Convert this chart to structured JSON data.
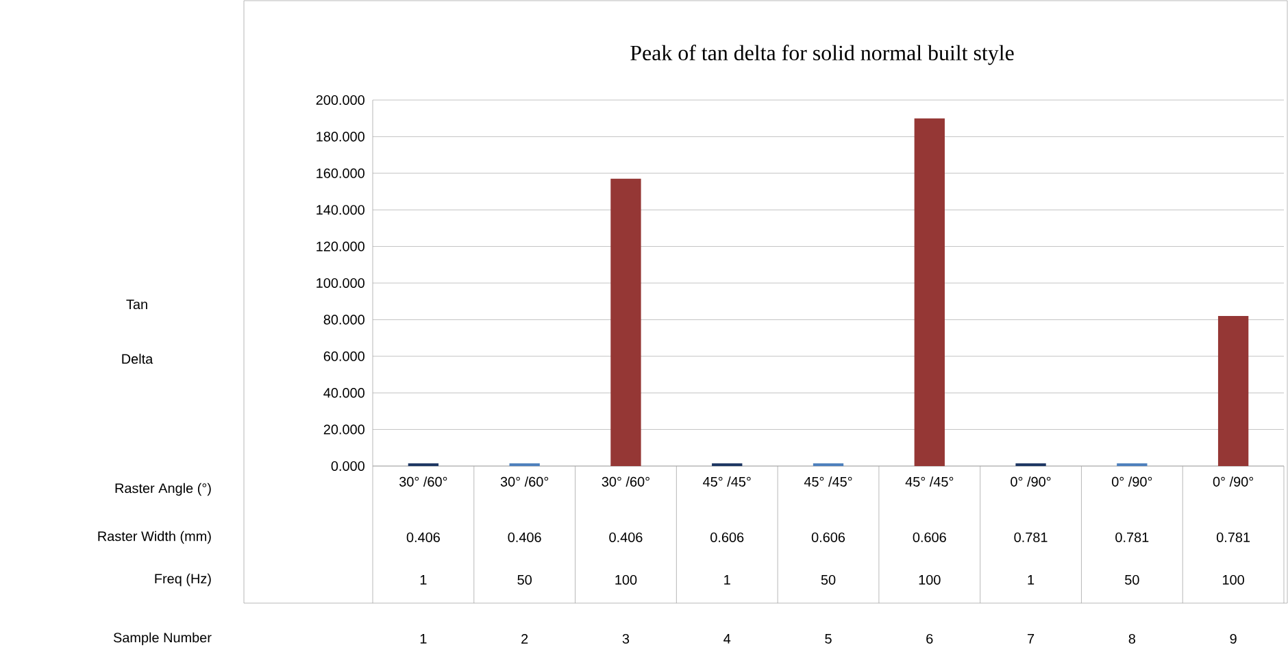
{
  "chart_data": {
    "type": "bar",
    "title": "Peak of tan delta for solid normal built style",
    "ylabel": "Tan Delta",
    "categories": [
      "30° /60°",
      "30° /60°",
      "30° /60°",
      "45° /45°",
      "45° /45°",
      "45° /45°",
      "0° /90°",
      "0° /90°",
      "0° /90°"
    ],
    "values": [
      1.5,
      1.5,
      157,
      1.5,
      1.5,
      190,
      1.5,
      1.5,
      82
    ],
    "colors": [
      "#1f3864",
      "#4f81bd",
      "#953735",
      "#1f3864",
      "#4f81bd",
      "#953735",
      "#1f3864",
      "#4f81bd",
      "#953735"
    ],
    "ylim": [
      0,
      200
    ],
    "yticks": [
      {
        "value": 0,
        "label": "0.000"
      },
      {
        "value": 20,
        "label": "20.000"
      },
      {
        "value": 40,
        "label": "40.000"
      },
      {
        "value": 60,
        "label": "60.000"
      },
      {
        "value": 80,
        "label": "80.000"
      },
      {
        "value": 100,
        "label": "100.000"
      },
      {
        "value": 120,
        "label": "120.000"
      },
      {
        "value": 140,
        "label": "140.000"
      },
      {
        "value": 160,
        "label": "160.000"
      },
      {
        "value": 180,
        "label": "180.000"
      },
      {
        "value": 200,
        "label": "200.000"
      }
    ],
    "grid": "y",
    "annotations": [
      "Raster Angle (°)",
      "Raster Width (mm)",
      "Freq (Hz)",
      "Sample Number",
      "0.406",
      "0.406",
      "0.406",
      "0.606",
      "0.606",
      "0.606",
      "0.781",
      "0.781",
      "0.781",
      "1",
      "50",
      "100",
      "1",
      "50",
      "100",
      "1",
      "50",
      "100",
      "1",
      "2",
      "3",
      "4",
      "5",
      "6",
      "7",
      "8",
      "9"
    ]
  }
}
